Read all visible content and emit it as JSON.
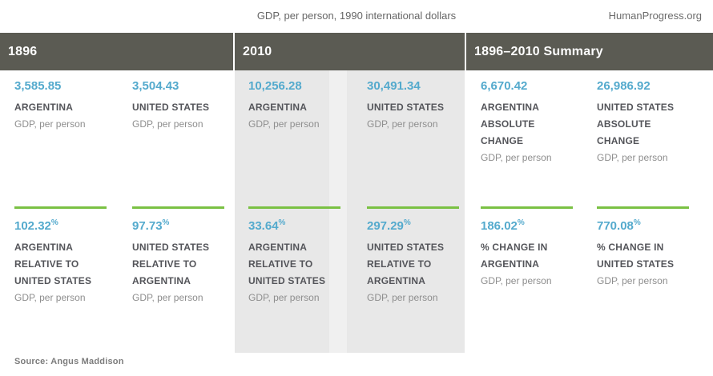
{
  "page": {
    "title": "GDP, per person, 1990 international dollars",
    "brand": "HumanProgress.org",
    "source": "Source: Angus Maddison"
  },
  "colors": {
    "header_bg": "#5b5b53",
    "panel_bg": "#e8e8e8",
    "value_blue": "#54aacd",
    "accent_green": "#7ac143"
  },
  "sections": [
    {
      "header": "1896",
      "row1": [
        {
          "value": "3,585.85",
          "suffix": "",
          "label": "ARGENTINA",
          "sub": "GDP, per person"
        },
        {
          "value": "3,504.43",
          "suffix": "",
          "label": "UNITED STATES",
          "sub": "GDP, per person"
        }
      ],
      "row2": [
        {
          "value": "102.32",
          "suffix": "%",
          "label": "ARGENTINA\nRELATIVE TO\nUNITED STATES",
          "sub": "GDP, per person"
        },
        {
          "value": "97.73",
          "suffix": "%",
          "label": "UNITED STATES\nRELATIVE TO\nARGENTINA",
          "sub": "GDP, per person"
        }
      ]
    },
    {
      "header": "2010",
      "row1": [
        {
          "value": "10,256.28",
          "suffix": "",
          "label": "ARGENTINA",
          "sub": "GDP, per person"
        },
        {
          "value": "30,491.34",
          "suffix": "",
          "label": "UNITED STATES",
          "sub": "GDP, per person"
        }
      ],
      "row2": [
        {
          "value": "33.64",
          "suffix": "%",
          "label": "ARGENTINA\nRELATIVE TO\nUNITED STATES",
          "sub": "GDP, per person"
        },
        {
          "value": "297.29",
          "suffix": "%",
          "label": "UNITED STATES\nRELATIVE TO\nARGENTINA",
          "sub": "GDP, per person"
        }
      ]
    },
    {
      "header": "1896–2010 Summary",
      "row1": [
        {
          "value": "6,670.42",
          "suffix": "",
          "label": "ARGENTINA\nABSOLUTE\nCHANGE",
          "sub": "GDP, per person"
        },
        {
          "value": "26,986.92",
          "suffix": "",
          "label": "UNITED STATES\nABSOLUTE\nCHANGE",
          "sub": "GDP, per person"
        }
      ],
      "row2": [
        {
          "value": "186.02",
          "suffix": "%",
          "label": "% CHANGE IN\nARGENTINA",
          "sub": "GDP, per person"
        },
        {
          "value": "770.08",
          "suffix": "%",
          "label": "% CHANGE IN\nUNITED STATES",
          "sub": "GDP, per person"
        }
      ]
    }
  ],
  "chart_data": {
    "type": "table",
    "title": "GDP, per person, 1990 international dollars",
    "source": "Angus Maddison",
    "columns": [
      "1896",
      "2010",
      "1896–2010 Summary"
    ],
    "groups": [
      {
        "period": "1896",
        "argentina_gdp_per_person": 3585.85,
        "united_states_gdp_per_person": 3504.43,
        "argentina_relative_to_us_pct": 102.32,
        "us_relative_to_argentina_pct": 97.73
      },
      {
        "period": "2010",
        "argentina_gdp_per_person": 10256.28,
        "united_states_gdp_per_person": 30491.34,
        "argentina_relative_to_us_pct": 33.64,
        "us_relative_to_argentina_pct": 297.29
      },
      {
        "period": "1896–2010 Summary",
        "argentina_absolute_change": 6670.42,
        "united_states_absolute_change": 26986.92,
        "pct_change_argentina": 186.02,
        "pct_change_united_states": 770.08
      }
    ]
  }
}
